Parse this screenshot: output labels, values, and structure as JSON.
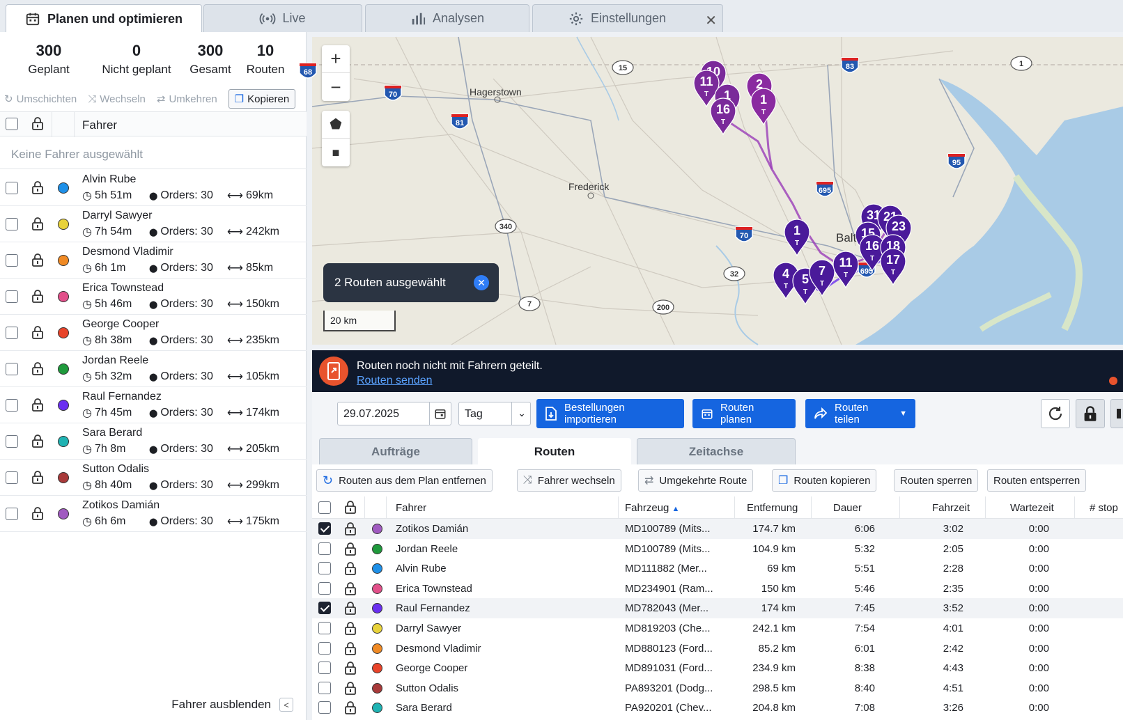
{
  "tabs": [
    {
      "label": "Planen und optimieren",
      "icon": "calendar-icon"
    },
    {
      "label": "Live",
      "icon": "broadcast-icon"
    },
    {
      "label": "Analysen",
      "icon": "bar-chart-icon"
    },
    {
      "label": "Einstellungen",
      "icon": "gear-icon"
    }
  ],
  "stats": [
    {
      "value": "300",
      "label": "Geplant"
    },
    {
      "value": "0",
      "label": "Nicht geplant"
    },
    {
      "value": "300",
      "label": "Gesamt"
    },
    {
      "value": "10",
      "label": "Routen"
    }
  ],
  "left_actions": {
    "umschichten": "Umschichten",
    "wechseln": "Wechseln",
    "umkehren": "Umkehren",
    "kopieren": "Kopieren"
  },
  "left_header": {
    "fahrer": "Fahrer"
  },
  "no_selection": "Keine Fahrer ausgewählt",
  "drivers": [
    {
      "name": "Alvin Rube",
      "time": "5h 51m",
      "orders": "Orders: 30",
      "dist": "69km",
      "color": "#1e90e8"
    },
    {
      "name": "Darryl Sawyer",
      "time": "7h 54m",
      "orders": "Orders: 30",
      "dist": "242km",
      "color": "#e8d23a"
    },
    {
      "name": "Desmond Vladimir",
      "time": "6h 1m",
      "orders": "Orders: 30",
      "dist": "85km",
      "color": "#f08a24"
    },
    {
      "name": "Erica Townstead",
      "time": "5h 46m",
      "orders": "Orders: 30",
      "dist": "150km",
      "color": "#e2508a"
    },
    {
      "name": "George Cooper",
      "time": "8h 38m",
      "orders": "Orders: 30",
      "dist": "235km",
      "color": "#e8442a"
    },
    {
      "name": "Jordan Reele",
      "time": "5h 32m",
      "orders": "Orders: 30",
      "dist": "105km",
      "color": "#1f9a3c"
    },
    {
      "name": "Raul Fernandez",
      "time": "7h 45m",
      "orders": "Orders: 30",
      "dist": "174km",
      "color": "#6a2ff0"
    },
    {
      "name": "Sara Berard",
      "time": "7h 8m",
      "orders": "Orders: 30",
      "dist": "205km",
      "color": "#1fb3b3"
    },
    {
      "name": "Sutton Odalis",
      "time": "8h 40m",
      "orders": "Orders: 30",
      "dist": "299km",
      "color": "#a83a3a"
    },
    {
      "name": "Zotikos Damián",
      "time": "6h 6m",
      "orders": "Orders: 30",
      "dist": "175km",
      "color": "#a05ac0"
    }
  ],
  "hide_drivers": "Fahrer ausblenden",
  "map": {
    "selected_pill": "2 Routen ausgewählt",
    "scale": "20 km",
    "places": [
      "Hagerstown",
      "Frederick",
      "Balt"
    ],
    "shields": [
      "70",
      "81",
      "15",
      "83",
      "1",
      "95",
      "695",
      "340",
      "70",
      "32",
      "7",
      "200",
      "695",
      "68"
    ],
    "pins": [
      "10",
      "11",
      "1",
      "16",
      "2",
      "1",
      "1",
      "4",
      "5",
      "7",
      "11",
      "31",
      "21",
      "23",
      "15",
      "16",
      "18",
      "17"
    ]
  },
  "banner": {
    "text": "Routen noch nicht mit Fahrern geteilt.",
    "link": "Routen senden"
  },
  "toolbar": {
    "date": "29.07.2025",
    "period": "Tag",
    "import": "Bestellungen importieren",
    "plan": "Routen planen",
    "share": "Routen teilen"
  },
  "subtabs": [
    "Aufträge",
    "Routen",
    "Zeitachse"
  ],
  "route_actions": [
    "Routen aus dem Plan entfernen",
    "Fahrer wechseln",
    "Umgekehrte Route",
    "Routen kopieren",
    "Routen sperren",
    "Routen entsperren"
  ],
  "table": {
    "headers": [
      "Fahrer",
      "Fahrzeug",
      "Entfernung",
      "Dauer",
      "Fahrzeit",
      "Wartezeit",
      "# stop"
    ],
    "rows": [
      {
        "checked": true,
        "color": "#a05ac0",
        "driver": "Zotikos Damián",
        "vehicle": "MD100789 (Mits...",
        "distance": "174.7 km",
        "duration": "6:06",
        "drive": "3:02",
        "wait": "0:00"
      },
      {
        "checked": false,
        "color": "#1f9a3c",
        "driver": "Jordan Reele",
        "vehicle": "MD100789 (Mits...",
        "distance": "104.9 km",
        "duration": "5:32",
        "drive": "2:05",
        "wait": "0:00"
      },
      {
        "checked": false,
        "color": "#1e90e8",
        "driver": "Alvin Rube",
        "vehicle": "MD111882 (Mer...",
        "distance": "69 km",
        "duration": "5:51",
        "drive": "2:28",
        "wait": "0:00"
      },
      {
        "checked": false,
        "color": "#e2508a",
        "driver": "Erica Townstead",
        "vehicle": "MD234901 (Ram...",
        "distance": "150 km",
        "duration": "5:46",
        "drive": "2:35",
        "wait": "0:00"
      },
      {
        "checked": true,
        "color": "#6a2ff0",
        "driver": "Raul Fernandez",
        "vehicle": "MD782043 (Mer...",
        "distance": "174 km",
        "duration": "7:45",
        "drive": "3:52",
        "wait": "0:00"
      },
      {
        "checked": false,
        "color": "#e8d23a",
        "driver": "Darryl Sawyer",
        "vehicle": "MD819203 (Che...",
        "distance": "242.1 km",
        "duration": "7:54",
        "drive": "4:01",
        "wait": "0:00"
      },
      {
        "checked": false,
        "color": "#f08a24",
        "driver": "Desmond Vladimir",
        "vehicle": "MD880123 (Ford...",
        "distance": "85.2 km",
        "duration": "6:01",
        "drive": "2:42",
        "wait": "0:00"
      },
      {
        "checked": false,
        "color": "#e8442a",
        "driver": "George Cooper",
        "vehicle": "MD891031 (Ford...",
        "distance": "234.9 km",
        "duration": "8:38",
        "drive": "4:43",
        "wait": "0:00"
      },
      {
        "checked": false,
        "color": "#a83a3a",
        "driver": "Sutton Odalis",
        "vehicle": "PA893201 (Dodg...",
        "distance": "298.5 km",
        "duration": "8:40",
        "drive": "4:51",
        "wait": "0:00"
      },
      {
        "checked": false,
        "color": "#1fb3b3",
        "driver": "Sara Berard",
        "vehicle": "PA920201 (Chev...",
        "distance": "204.8 km",
        "duration": "7:08",
        "drive": "3:26",
        "wait": "0:00"
      }
    ]
  }
}
